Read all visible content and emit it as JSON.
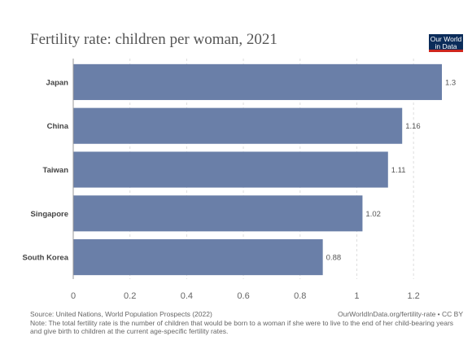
{
  "title": "Fertility rate: children per woman, 2021",
  "logo": {
    "line1": "Our World",
    "line2": "in Data"
  },
  "chart_data": {
    "type": "bar",
    "orientation": "horizontal",
    "categories": [
      "Japan",
      "China",
      "Taiwan",
      "Singapore",
      "South Korea"
    ],
    "values": [
      1.3,
      1.16,
      1.11,
      1.02,
      0.88
    ],
    "value_labels": [
      "1.3",
      "1.16",
      "1.11",
      "1.02",
      "0.88"
    ],
    "x_ticks": [
      0,
      0.2,
      0.4,
      0.6,
      0.8,
      1,
      1.2
    ],
    "x_tick_labels": [
      "0",
      "0.2",
      "0.4",
      "0.6",
      "0.8",
      "1",
      "1.2"
    ],
    "xlim": [
      0,
      1.3
    ],
    "bar_color": "#6a7fa8",
    "grid": true,
    "legend": "none"
  },
  "footer": {
    "source": "Source: United Nations, World Population Prospects (2022)",
    "url": "OurWorldInData.org/fertility-rate • CC BY",
    "note": "Note: The total fertility rate is the number of children that would be born to a woman if she were to live to the end of her child-bearing years and give birth to children at the current age-specific fertility rates."
  }
}
